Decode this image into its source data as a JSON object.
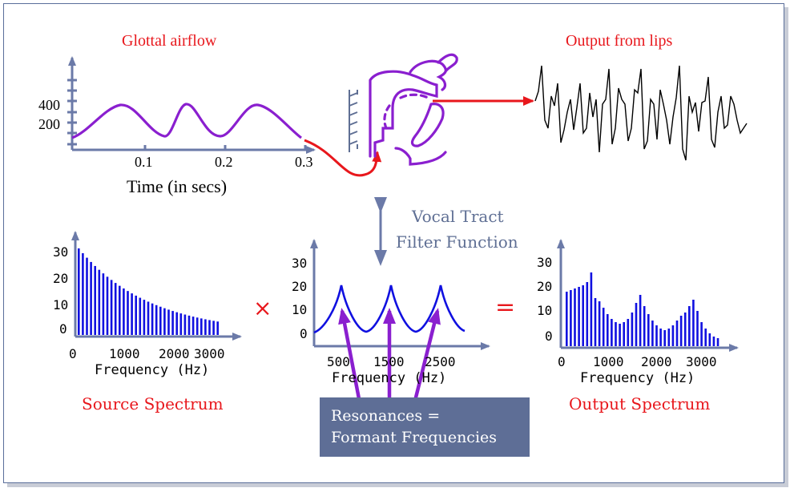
{
  "glottal": {
    "title": "Glottal airflow",
    "yticks": [
      "400",
      "200"
    ],
    "xticks": [
      "0.1",
      "0.2",
      "0.3"
    ],
    "xlabel": "Time (in secs)"
  },
  "lips": {
    "title": "Output from lips"
  },
  "vocal_tract": {
    "line1": "Vocal Tract",
    "line2": "Filter Function"
  },
  "source": {
    "yticks": [
      "30",
      "20",
      "10",
      "0"
    ],
    "xticks": [
      "0",
      "1000",
      "2000",
      "3000"
    ],
    "xlabel": "Frequency (Hz)",
    "title": "Source Spectrum"
  },
  "filter": {
    "yticks": [
      "30",
      "20",
      "10",
      "0"
    ],
    "xticks": [
      "500",
      "1500",
      "2500"
    ],
    "xlabel": "Frequency (Hz)"
  },
  "output": {
    "yticks": [
      "30",
      "20",
      "10",
      "0"
    ],
    "xticks": [
      "0",
      "1000",
      "2000",
      "3000"
    ],
    "xlabel": "Frequency (Hz)",
    "title": "Output Spectrum"
  },
  "operators": {
    "times": "×",
    "equals": "="
  },
  "resonances": {
    "line1": "Resonances =",
    "line2": "Formant Frequencies"
  },
  "colors": {
    "red": "#e8171c",
    "purple": "#8a1fcf",
    "blue": "#1010e0",
    "axis": "#6b7aa8",
    "box": "#5e6e96"
  }
}
